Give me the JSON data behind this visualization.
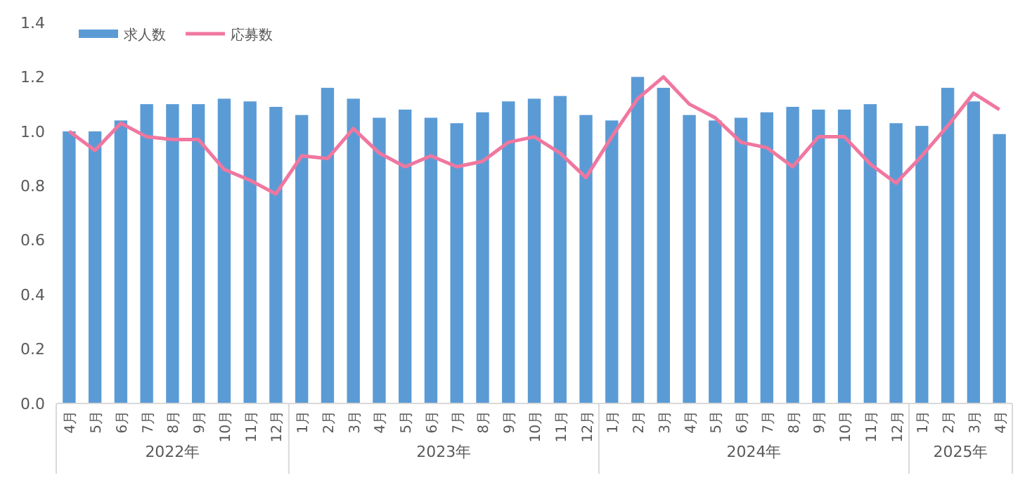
{
  "chart_data": {
    "type": "bar",
    "categories": [
      "4月",
      "5月",
      "6月",
      "7月",
      "8月",
      "9月",
      "10月",
      "11月",
      "12月",
      "1月",
      "2月",
      "3月",
      "4月",
      "5月",
      "6月",
      "7月",
      "8月",
      "9月",
      "10月",
      "11月",
      "12月",
      "1月",
      "2月",
      "3月",
      "4月",
      "5月",
      "6月",
      "7月",
      "8月",
      "9月",
      "10月",
      "11月",
      "12月",
      "1月",
      "2月",
      "3月",
      "4月"
    ],
    "series": [
      {
        "name": "求人数",
        "color": "#5b9bd5",
        "values": [
          1.0,
          1.0,
          1.04,
          1.1,
          1.1,
          1.1,
          1.12,
          1.11,
          1.09,
          1.06,
          1.16,
          1.12,
          1.05,
          1.08,
          1.05,
          1.03,
          1.07,
          1.11,
          1.12,
          1.13,
          1.06,
          1.04,
          1.2,
          1.16,
          1.06,
          1.04,
          1.05,
          1.07,
          1.09,
          1.08,
          1.08,
          1.1,
          1.03,
          1.02,
          1.16,
          1.11,
          0.99
        ]
      },
      {
        "name": "応募数",
        "type": "line",
        "color": "#f0779f",
        "values": [
          1.0,
          0.93,
          1.03,
          0.98,
          0.97,
          0.97,
          0.86,
          0.82,
          0.77,
          0.91,
          0.9,
          1.01,
          0.92,
          0.87,
          0.91,
          0.87,
          0.89,
          0.96,
          0.98,
          0.92,
          0.83,
          0.98,
          1.12,
          1.2,
          1.1,
          1.05,
          0.96,
          0.94,
          0.87,
          0.98,
          0.98,
          0.88,
          0.81,
          0.91,
          1.02,
          1.14,
          1.08
        ]
      }
    ],
    "annotations": [
      "2022年",
      "2023年",
      "2024年",
      "2025年"
    ],
    "ylim": [
      0,
      1.4
    ],
    "yticks": [
      {
        "value": 0,
        "label": "0.0"
      },
      {
        "value": 0.2,
        "label": "0.2"
      },
      {
        "value": 0.4,
        "label": "0.4"
      },
      {
        "value": 0.6,
        "label": "0.6"
      },
      {
        "value": 0.8,
        "label": "0.8"
      },
      {
        "value": 1,
        "label": "1.0"
      },
      {
        "value": 1.2,
        "label": "1.2"
      },
      {
        "value": 1.4,
        "label": "1.4"
      }
    ],
    "grid": false,
    "legend": "top left",
    "marker": "none",
    "line_style": "solid"
  }
}
